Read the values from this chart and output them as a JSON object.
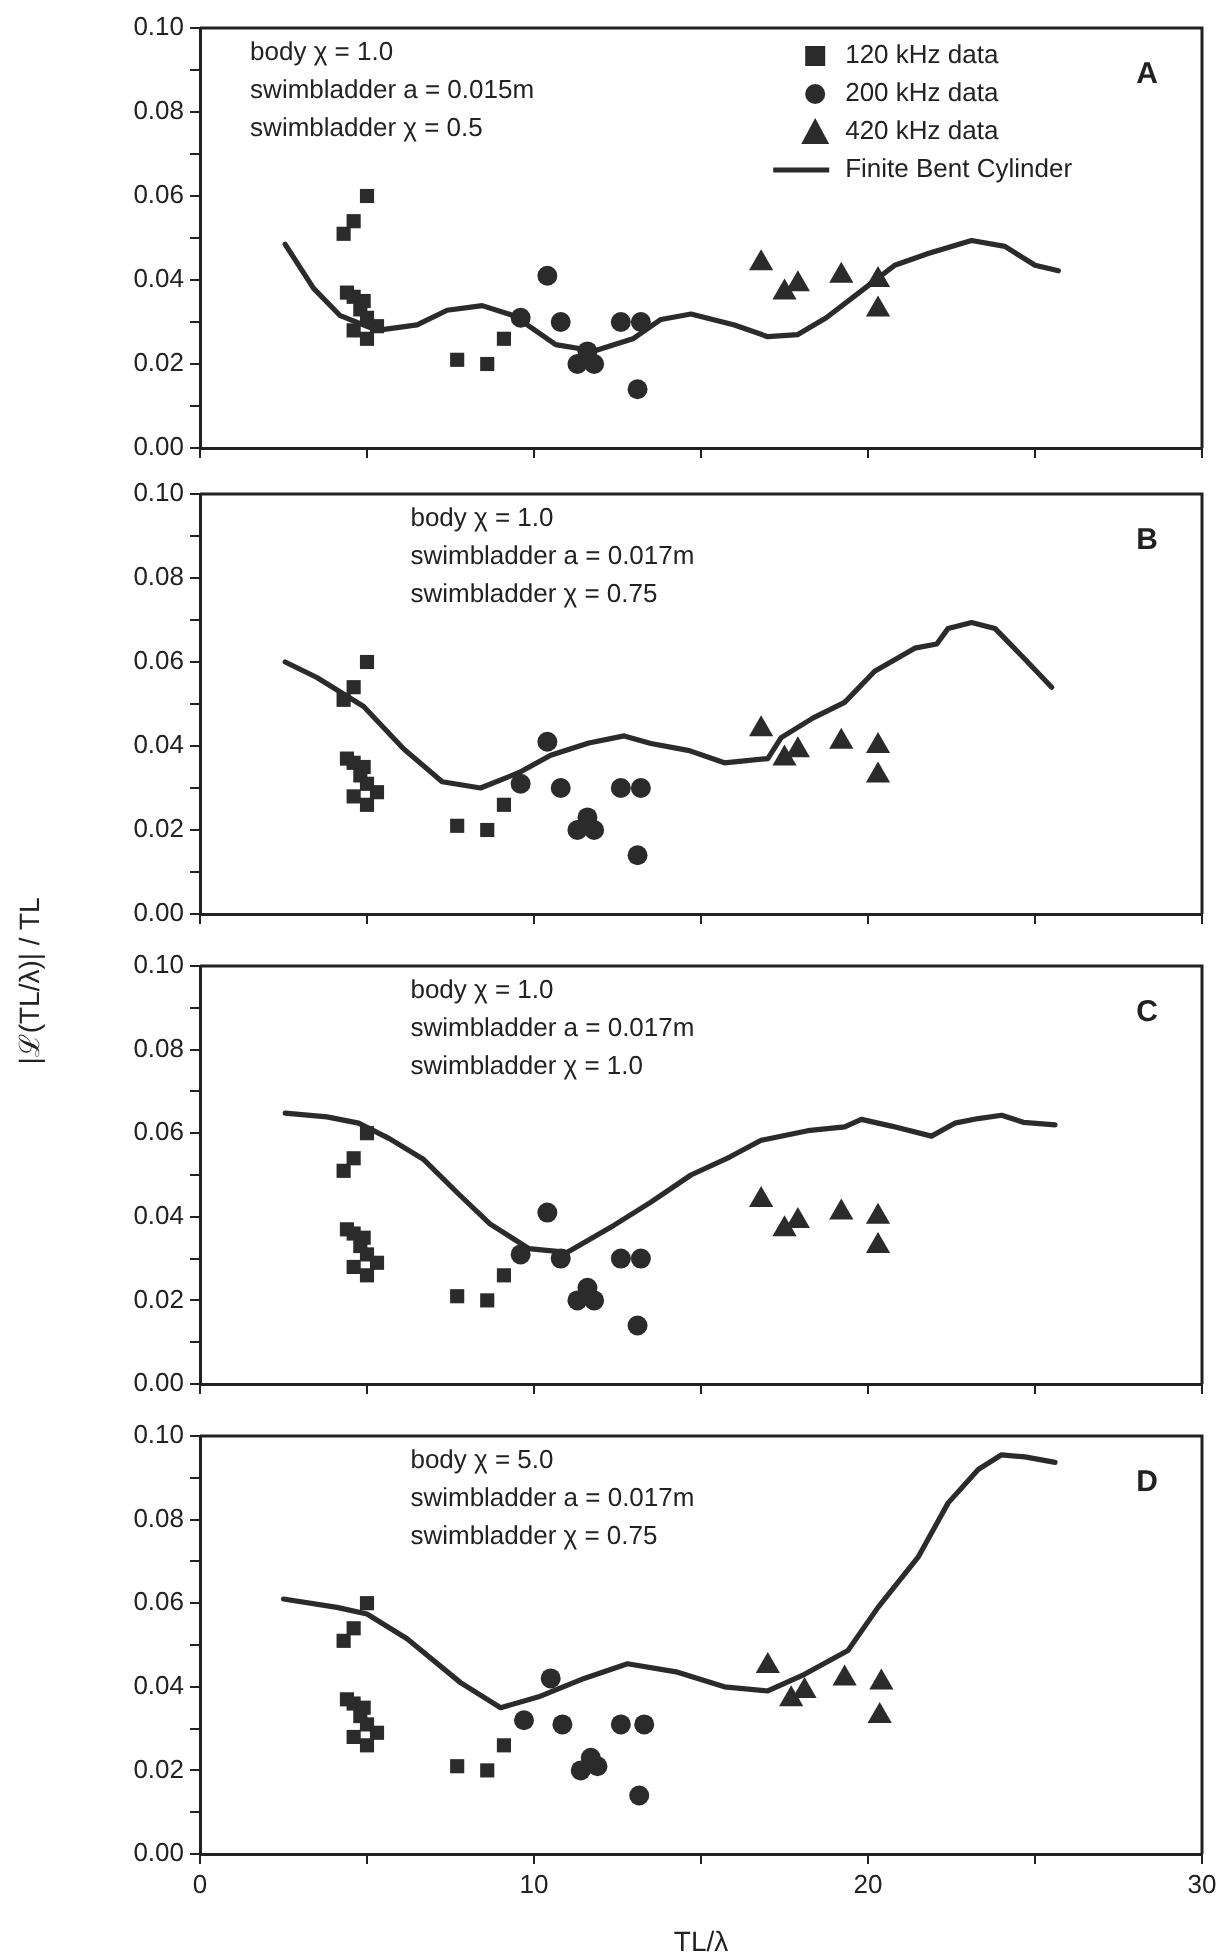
{
  "chart_data": [
    {
      "type": "scatter",
      "legend": "top right",
      "tick_labels": "y",
      "xlim": [
        0,
        30
      ],
      "ylim": [
        0,
        0.1
      ],
      "xticks": [
        {
          "value": 0,
          "label": null
        },
        {
          "value": 5,
          "label": null
        },
        {
          "value": 10,
          "label": null
        },
        {
          "value": 15,
          "label": null
        },
        {
          "value": 20,
          "label": null
        },
        {
          "value": 25,
          "label": null
        },
        {
          "value": 30,
          "label": null
        }
      ],
      "yticks": [
        {
          "value": 0,
          "label": "0.00"
        },
        {
          "value": 0.01,
          "label": null
        },
        {
          "value": 0.02,
          "label": "0.02"
        },
        {
          "value": 0.03,
          "label": null
        },
        {
          "value": 0.04,
          "label": "0.04"
        },
        {
          "value": 0.05,
          "label": null
        },
        {
          "value": 0.06,
          "label": "0.06"
        },
        {
          "value": 0.07,
          "label": null
        },
        {
          "value": 0.08,
          "label": "0.08"
        },
        {
          "value": 0.09,
          "label": null
        },
        {
          "value": 0.1,
          "label": "0.10"
        }
      ],
      "annotations": [
        "body χ = 1.0",
        "swimbladder a = 0.015m",
        "swimbladder χ = 0.5",
        "A"
      ],
      "series": [
        {
          "name": "120 kHz data",
          "type": "scatter",
          "marker": "square",
          "color": "#2b2b2b",
          "x": [
            4.3,
            4.6,
            5.0,
            4.4,
            4.6,
            4.9,
            4.8,
            5.0,
            4.6,
            5.3,
            5.0,
            7.7,
            8.6,
            9.1
          ],
          "values": [
            0.051,
            0.054,
            0.06,
            0.037,
            0.036,
            0.035,
            0.033,
            0.031,
            0.028,
            0.029,
            0.026,
            0.021,
            0.02,
            0.026
          ]
        },
        {
          "name": "200 kHz data",
          "type": "scatter",
          "marker": "circle",
          "color": "#2b2b2b",
          "x": [
            10.4,
            9.6,
            10.8,
            11.3,
            11.6,
            11.8,
            12.6,
            13.2,
            13.1
          ],
          "values": [
            0.041,
            0.031,
            0.03,
            0.02,
            0.023,
            0.02,
            0.03,
            0.03,
            0.014
          ]
        },
        {
          "name": "420 kHz data",
          "type": "scatter",
          "marker": "triangle",
          "color": "#2b2b2b",
          "x": [
            16.8,
            17.5,
            17.9,
            19.2,
            20.3,
            20.3
          ],
          "values": [
            0.044,
            0.037,
            0.039,
            0.041,
            0.04,
            0.033
          ]
        },
        {
          "name": "Finite Bent Cylinder",
          "type": "line",
          "marker": "none",
          "color": "#2b2b2b",
          "x": [
            2.55,
            3.4,
            4.2,
            5.3,
            6.5,
            7.4,
            8.45,
            9.4,
            10.65,
            11.8,
            12.96,
            13.8,
            14.7,
            16.0,
            17.0,
            17.9,
            18.75,
            19.9,
            20.8,
            21.8,
            23.1,
            24.1,
            25.0,
            25.7
          ],
          "values": [
            0.0485,
            0.038,
            0.0315,
            0.028,
            0.0293,
            0.0328,
            0.0339,
            0.0315,
            0.0246,
            0.0231,
            0.026,
            0.0306,
            0.0319,
            0.0293,
            0.0265,
            0.027,
            0.031,
            0.038,
            0.0435,
            0.0463,
            0.0494,
            0.048,
            0.0435,
            0.0422
          ]
        }
      ]
    },
    {
      "type": "scatter",
      "tick_labels": "y",
      "xlim": [
        0,
        30
      ],
      "ylim": [
        0,
        0.1
      ],
      "xticks": [
        {
          "value": 0,
          "label": null
        },
        {
          "value": 5,
          "label": null
        },
        {
          "value": 10,
          "label": null
        },
        {
          "value": 15,
          "label": null
        },
        {
          "value": 20,
          "label": null
        },
        {
          "value": 25,
          "label": null
        },
        {
          "value": 30,
          "label": null
        }
      ],
      "yticks": [
        {
          "value": 0,
          "label": "0.00"
        },
        {
          "value": 0.01,
          "label": null
        },
        {
          "value": 0.02,
          "label": "0.02"
        },
        {
          "value": 0.03,
          "label": null
        },
        {
          "value": 0.04,
          "label": "0.04"
        },
        {
          "value": 0.05,
          "label": null
        },
        {
          "value": 0.06,
          "label": "0.06"
        },
        {
          "value": 0.07,
          "label": null
        },
        {
          "value": 0.08,
          "label": "0.08"
        },
        {
          "value": 0.09,
          "label": null
        },
        {
          "value": 0.1,
          "label": "0.10"
        }
      ],
      "ylabel": "|ℒ(TL/λ)| / TL",
      "annotations": [
        "body χ = 1.0",
        "swimbladder a = 0.017m",
        "swimbladder χ = 0.75",
        "B"
      ],
      "series": [
        {
          "type": "scatter",
          "marker": "square",
          "color": "#2b2b2b",
          "x": [
            4.3,
            4.6,
            5.0,
            4.4,
            4.6,
            4.9,
            4.8,
            5.0,
            4.6,
            5.3,
            5.0,
            7.7,
            8.6,
            9.1
          ],
          "values": [
            0.051,
            0.054,
            0.06,
            0.037,
            0.036,
            0.035,
            0.033,
            0.031,
            0.028,
            0.029,
            0.026,
            0.021,
            0.02,
            0.026
          ]
        },
        {
          "type": "scatter",
          "marker": "circle",
          "color": "#2b2b2b",
          "x": [
            10.4,
            9.6,
            10.8,
            11.3,
            11.6,
            11.8,
            12.6,
            13.2,
            13.1
          ],
          "values": [
            0.041,
            0.031,
            0.03,
            0.02,
            0.023,
            0.02,
            0.03,
            0.03,
            0.014
          ]
        },
        {
          "type": "scatter",
          "marker": "triangle",
          "color": "#2b2b2b",
          "x": [
            16.8,
            17.5,
            17.9,
            19.2,
            20.3,
            20.3
          ],
          "values": [
            0.044,
            0.037,
            0.039,
            0.041,
            0.04,
            0.033
          ]
        },
        {
          "type": "line",
          "marker": "none",
          "color": "#2b2b2b",
          "x": [
            2.55,
            3.5,
            4.9,
            6.1,
            7.25,
            8.4,
            9.56,
            10.5,
            11.64,
            12.7,
            13.5,
            14.65,
            15.7,
            17.0,
            17.4,
            18.36,
            19.3,
            20.2,
            21.4,
            22.06,
            22.4,
            23.1,
            23.8,
            24.6,
            25.5
          ],
          "values": [
            0.06,
            0.0563,
            0.0494,
            0.0393,
            0.0315,
            0.03,
            0.0337,
            0.0378,
            0.0407,
            0.0424,
            0.0406,
            0.0389,
            0.036,
            0.037,
            0.042,
            0.0467,
            0.0504,
            0.0578,
            0.0633,
            0.0643,
            0.068,
            0.0694,
            0.068,
            0.0615,
            0.054
          ]
        }
      ]
    },
    {
      "type": "scatter",
      "tick_labels": "y",
      "xlim": [
        0,
        30
      ],
      "ylim": [
        0,
        0.1
      ],
      "xticks": [
        {
          "value": 0,
          "label": null
        },
        {
          "value": 5,
          "label": null
        },
        {
          "value": 10,
          "label": null
        },
        {
          "value": 15,
          "label": null
        },
        {
          "value": 20,
          "label": null
        },
        {
          "value": 25,
          "label": null
        },
        {
          "value": 30,
          "label": null
        }
      ],
      "yticks": [
        {
          "value": 0,
          "label": "0.00"
        },
        {
          "value": 0.01,
          "label": null
        },
        {
          "value": 0.02,
          "label": "0.02"
        },
        {
          "value": 0.03,
          "label": null
        },
        {
          "value": 0.04,
          "label": "0.04"
        },
        {
          "value": 0.05,
          "label": null
        },
        {
          "value": 0.06,
          "label": "0.06"
        },
        {
          "value": 0.07,
          "label": null
        },
        {
          "value": 0.08,
          "label": "0.08"
        },
        {
          "value": 0.09,
          "label": null
        },
        {
          "value": 0.1,
          "label": "0.10"
        }
      ],
      "annotations": [
        "body χ = 1.0",
        "swimbladder a = 0.017m",
        "swimbladder χ = 1.0",
        "C"
      ],
      "series": [
        {
          "type": "scatter",
          "marker": "square",
          "color": "#2b2b2b",
          "x": [
            4.3,
            4.6,
            5.0,
            4.4,
            4.6,
            4.9,
            4.8,
            5.0,
            4.6,
            5.3,
            5.0,
            7.7,
            8.6,
            9.1
          ],
          "values": [
            0.051,
            0.054,
            0.06,
            0.037,
            0.036,
            0.035,
            0.033,
            0.031,
            0.028,
            0.029,
            0.026,
            0.021,
            0.02,
            0.026
          ]
        },
        {
          "type": "scatter",
          "marker": "circle",
          "color": "#2b2b2b",
          "x": [
            10.4,
            9.6,
            10.8,
            11.3,
            11.6,
            11.8,
            12.6,
            13.2,
            13.1
          ],
          "values": [
            0.041,
            0.031,
            0.03,
            0.02,
            0.023,
            0.02,
            0.03,
            0.03,
            0.014
          ]
        },
        {
          "type": "scatter",
          "marker": "triangle",
          "color": "#2b2b2b",
          "x": [
            16.8,
            17.5,
            17.9,
            19.2,
            20.3,
            20.3
          ],
          "values": [
            0.044,
            0.037,
            0.039,
            0.041,
            0.04,
            0.033
          ]
        },
        {
          "type": "line",
          "marker": "none",
          "color": "#2b2b2b",
          "x": [
            2.55,
            3.8,
            4.75,
            5.67,
            6.7,
            7.75,
            8.68,
            9.84,
            11.0,
            12.4,
            13.5,
            14.7,
            15.86,
            16.8,
            18.2,
            19.3,
            19.8,
            20.7,
            21.9,
            22.6,
            23.3,
            24.0,
            24.65,
            25.6
          ],
          "values": [
            0.0648,
            0.0639,
            0.0624,
            0.0587,
            0.0537,
            0.0454,
            0.0383,
            0.0324,
            0.0315,
            0.038,
            0.0435,
            0.05,
            0.0543,
            0.0583,
            0.0606,
            0.0615,
            0.0633,
            0.0617,
            0.0593,
            0.0624,
            0.0635,
            0.0643,
            0.0626,
            0.062
          ]
        }
      ]
    },
    {
      "type": "scatter",
      "xlim": [
        0,
        30
      ],
      "ylim": [
        0,
        0.1
      ],
      "xlabel": "TL/λ",
      "xticks": [
        0,
        {
          "value": 5,
          "label": null
        },
        10,
        {
          "value": 15,
          "label": null
        },
        20,
        {
          "value": 25,
          "label": null
        },
        30
      ],
      "yticks": [
        {
          "value": 0,
          "label": "0.00"
        },
        {
          "value": 0.01,
          "label": null
        },
        {
          "value": 0.02,
          "label": "0.02"
        },
        {
          "value": 0.03,
          "label": null
        },
        {
          "value": 0.04,
          "label": "0.04"
        },
        {
          "value": 0.05,
          "label": null
        },
        {
          "value": 0.06,
          "label": "0.06"
        },
        {
          "value": 0.07,
          "label": null
        },
        {
          "value": 0.08,
          "label": "0.08"
        },
        {
          "value": 0.09,
          "label": null
        },
        {
          "value": 0.1,
          "label": "0.10"
        }
      ],
      "annotations": [
        "body χ = 5.0",
        "swimbladder a = 0.017m",
        "swimbladder χ = 0.75",
        "D"
      ],
      "series": [
        {
          "type": "scatter",
          "marker": "square",
          "color": "#2b2b2b",
          "x": [
            4.3,
            4.6,
            5.0,
            4.4,
            4.6,
            4.9,
            4.8,
            5.0,
            4.6,
            5.3,
            5.0,
            7.7,
            8.6,
            9.1
          ],
          "values": [
            0.051,
            0.054,
            0.06,
            0.037,
            0.036,
            0.035,
            0.033,
            0.031,
            0.028,
            0.029,
            0.026,
            0.021,
            0.02,
            0.026
          ]
        },
        {
          "type": "scatter",
          "marker": "circle",
          "color": "#2b2b2b",
          "x": [
            10.5,
            9.7,
            10.85,
            11.4,
            11.7,
            11.9,
            12.6,
            13.3,
            13.15
          ],
          "values": [
            0.042,
            0.032,
            0.031,
            0.02,
            0.023,
            0.021,
            0.031,
            0.031,
            0.014
          ]
        },
        {
          "type": "scatter",
          "marker": "triangle",
          "color": "#2b2b2b",
          "x": [
            17.0,
            17.7,
            18.1,
            19.3,
            20.4,
            20.35
          ],
          "values": [
            0.045,
            0.037,
            0.039,
            0.042,
            0.041,
            0.033
          ]
        },
        {
          "type": "line",
          "marker": "none",
          "color": "#2b2b2b",
          "x": [
            2.5,
            4.1,
            5.0,
            6.2,
            7.8,
            9.0,
            10.14,
            11.5,
            12.8,
            14.3,
            15.7,
            17.0,
            18.1,
            19.4,
            20.3,
            21.5,
            22.4,
            23.3,
            24.0,
            24.7,
            25.6
          ],
          "values": [
            0.061,
            0.059,
            0.0574,
            0.0515,
            0.041,
            0.035,
            0.0376,
            0.042,
            0.0455,
            0.0435,
            0.04,
            0.039,
            0.043,
            0.0487,
            0.059,
            0.071,
            0.084,
            0.092,
            0.0955,
            0.095,
            0.0937
          ]
        }
      ]
    }
  ]
}
